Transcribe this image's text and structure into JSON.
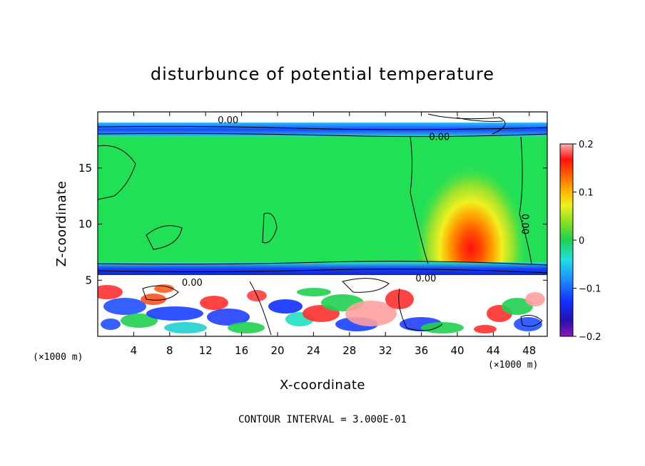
{
  "chart_data": {
    "type": "heatmap",
    "title": "disturbunce of potential temperature",
    "xlabel": "X-coordinate",
    "ylabel": "Z-coordinate",
    "x_unit": "(×1000 m)",
    "x_unit_right": "(×1000 m)",
    "xlim": [
      0,
      50
    ],
    "ylim": [
      0,
      20
    ],
    "x_ticks": [
      4,
      8,
      12,
      16,
      20,
      24,
      28,
      32,
      36,
      40,
      44,
      48
    ],
    "y_ticks": [
      5,
      10,
      15
    ],
    "colorbar": {
      "range": [
        -0.2,
        0.2
      ],
      "ticks": [
        "0.2",
        "0.1",
        "0",
        "−0.1",
        "−0.2"
      ],
      "tick_values": [
        0.2,
        0.1,
        0,
        -0.1,
        -0.2
      ]
    },
    "contour_labels": [
      {
        "text": "0.00",
        "x": 14.5,
        "y": 19.0
      },
      {
        "text": "0.00",
        "x": 38.0,
        "y": 17.5
      },
      {
        "text": "0.00",
        "x": 47.2,
        "y": 10.0,
        "rotate": 90
      },
      {
        "text": "0.00",
        "x": 36.5,
        "y": 4.9
      },
      {
        "text": "0.00",
        "x": 10.5,
        "y": 4.5
      }
    ],
    "footer": "CONTOUR INTERVAL = 3.000E-01",
    "colors": {
      "background_field": "#22e055",
      "warm_core": "#ff2020",
      "cold_band": "#2050ff"
    }
  }
}
